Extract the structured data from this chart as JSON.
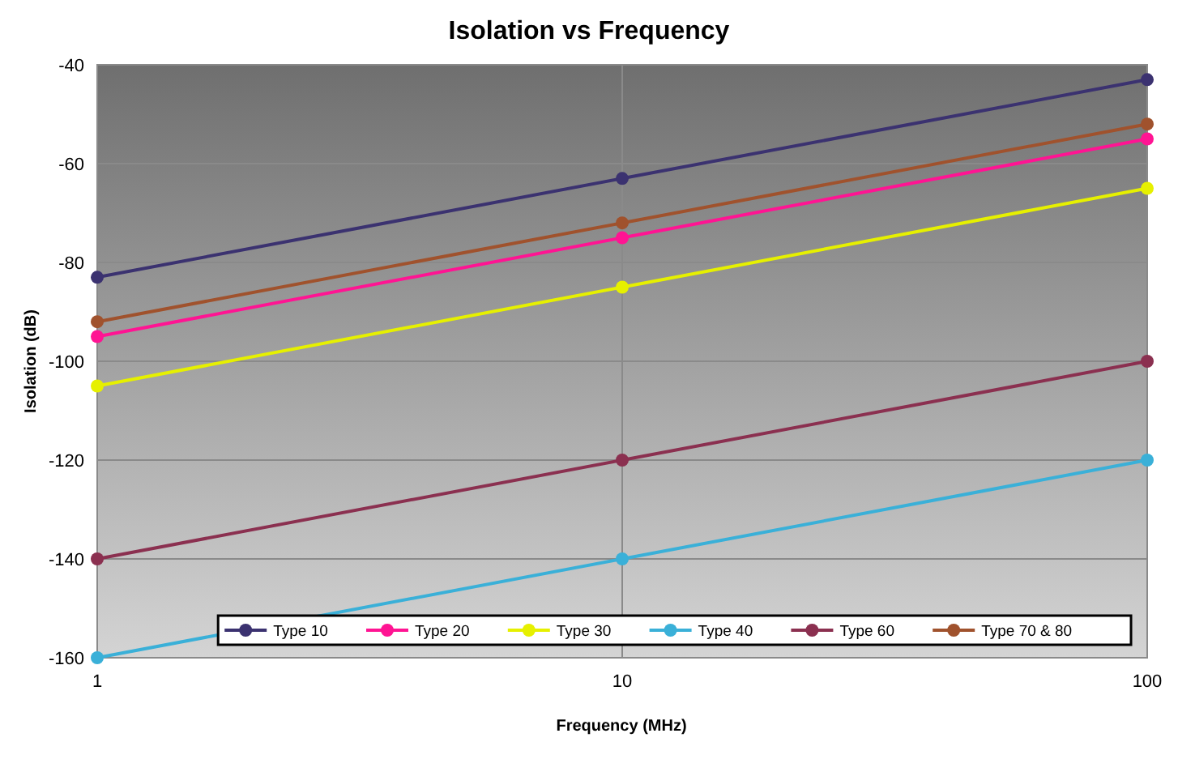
{
  "chart_data": {
    "type": "line",
    "title": "Isolation vs Frequency",
    "xlabel": "Frequency (MHz)",
    "ylabel": "Isolation (dB)",
    "log": "x",
    "x": [
      1,
      10,
      100
    ],
    "xlim": [
      1,
      100
    ],
    "xticks": [
      1,
      10,
      100
    ],
    "ylim": [
      -160,
      -40
    ],
    "yticks": [
      -160,
      -140,
      -120,
      -100,
      -80,
      -60,
      -40
    ],
    "grid": true,
    "legend": "bottom right",
    "marker": "circle",
    "line_style": "solid",
    "series": [
      {
        "name": "Type 10",
        "color": "#3b3270",
        "values": [
          -83,
          -63,
          -43
        ]
      },
      {
        "name": "Type 20",
        "color": "#ff1493",
        "values": [
          -95,
          -75,
          -55
        ]
      },
      {
        "name": "Type 30",
        "color": "#e6f000",
        "values": [
          -105,
          -85,
          -65
        ]
      },
      {
        "name": "Type 40",
        "color": "#3ab0d8",
        "values": [
          -160,
          -140,
          -120
        ]
      },
      {
        "name": "Type 60",
        "color": "#8b3050",
        "values": [
          -140,
          -120,
          -100
        ]
      },
      {
        "name": "Type 70 & 80",
        "color": "#a0522d",
        "values": [
          -92,
          -72,
          -52
        ]
      }
    ]
  }
}
